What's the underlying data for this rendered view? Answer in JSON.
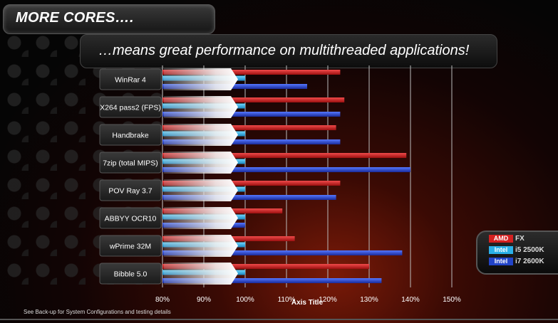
{
  "header": {
    "title": "MORE CORES….",
    "subtitle": "…means great performance on multithreaded applications!"
  },
  "footnote": "See Back-up for System Configurations and testing details",
  "chart_data": {
    "type": "bar",
    "orientation": "horizontal",
    "categories": [
      "WinRar 4",
      "X264 pass2 (FPS)",
      "Handbrake",
      "7zip (total MIPS)",
      "POV Ray 3.7",
      "ABBYY OCR10",
      "wPrime 32M",
      "Bibble 5.0"
    ],
    "series": [
      {
        "name": "AMD FX",
        "color": "#d42020",
        "values": [
          1.23,
          1.24,
          1.22,
          1.39,
          1.23,
          1.09,
          1.12,
          1.3
        ]
      },
      {
        "name": "Intel i5 2500K",
        "color": "#2ab0e8",
        "values": [
          1.0,
          1.0,
          1.0,
          1.0,
          1.0,
          1.0,
          1.0,
          1.0
        ]
      },
      {
        "name": "Intel i7 2600K",
        "color": "#2244c8",
        "values": [
          1.15,
          1.23,
          1.23,
          1.4,
          1.22,
          1.0,
          1.38,
          1.33
        ]
      }
    ],
    "legend_entries": [
      {
        "brand": "AMD",
        "model": "FX"
      },
      {
        "brand": "Intel",
        "model": "i5 2500K"
      },
      {
        "brand": "Intel",
        "model": "i7 2600K"
      }
    ],
    "xlim": [
      0.8,
      1.5
    ],
    "x_ticks": [
      "80%",
      "90%",
      "100%",
      "110%",
      "120%",
      "130%",
      "140%",
      "150%"
    ],
    "xlabel": "Axis Title",
    "grid": true,
    "legend_position": "bottom-right"
  }
}
